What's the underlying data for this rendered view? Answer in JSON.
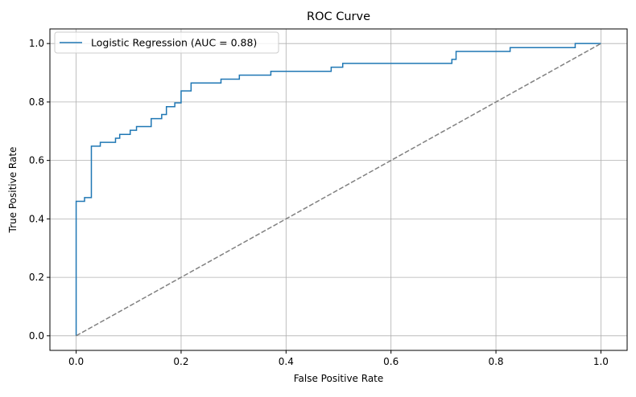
{
  "chart_data": {
    "type": "line",
    "title": "ROC Curve",
    "xlabel": "False Positive Rate",
    "ylabel": "True Positive Rate",
    "xlim": [
      -0.05,
      1.05
    ],
    "ylim": [
      -0.05,
      1.05
    ],
    "xticks": [
      0.0,
      0.2,
      0.4,
      0.6,
      0.8,
      1.0
    ],
    "yticks": [
      0.0,
      0.2,
      0.4,
      0.6,
      0.8,
      1.0
    ],
    "xtick_labels": [
      "0.0",
      "0.2",
      "0.4",
      "0.6",
      "0.8",
      "1.0"
    ],
    "ytick_labels": [
      "0.0",
      "0.2",
      "0.4",
      "0.6",
      "0.8",
      "1.0"
    ],
    "grid": true,
    "legend_position": "upper-left",
    "series": [
      {
        "name": "Logistic Regression (AUC = 0.88)",
        "style": "solid",
        "color": "#1f77b4",
        "x": [
          0.0,
          0.0,
          0.0,
          0.016,
          0.016,
          0.029,
          0.029,
          0.046,
          0.046,
          0.075,
          0.075,
          0.083,
          0.083,
          0.103,
          0.103,
          0.115,
          0.115,
          0.143,
          0.143,
          0.163,
          0.163,
          0.172,
          0.172,
          0.188,
          0.188,
          0.2,
          0.2,
          0.219,
          0.219,
          0.276,
          0.276,
          0.311,
          0.311,
          0.371,
          0.371,
          0.486,
          0.486,
          0.508,
          0.508,
          0.716,
          0.716,
          0.724,
          0.724,
          0.827,
          0.827,
          0.951,
          0.951,
          1.0
        ],
        "y": [
          0.0,
          0.46,
          0.46,
          0.46,
          0.473,
          0.473,
          0.649,
          0.649,
          0.662,
          0.662,
          0.676,
          0.676,
          0.689,
          0.689,
          0.703,
          0.703,
          0.716,
          0.716,
          0.743,
          0.743,
          0.757,
          0.757,
          0.784,
          0.784,
          0.797,
          0.797,
          0.838,
          0.838,
          0.865,
          0.865,
          0.878,
          0.878,
          0.892,
          0.892,
          0.905,
          0.905,
          0.919,
          0.919,
          0.932,
          0.932,
          0.946,
          0.946,
          0.973,
          0.973,
          0.986,
          0.986,
          1.0,
          1.0
        ]
      },
      {
        "style": "dashed",
        "color": "#808080",
        "x": [
          0.0,
          1.0
        ],
        "y": [
          0.0,
          1.0
        ]
      }
    ]
  },
  "colors": {
    "roc_line": "#1f77b4",
    "diagonal": "#808080",
    "grid": "#b0b0b0",
    "legend_border": "#cccccc"
  }
}
